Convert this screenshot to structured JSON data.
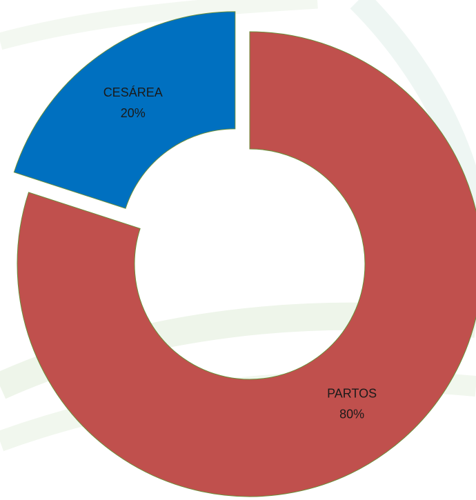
{
  "chart_data": {
    "type": "donut",
    "categories": [
      "PARTOS",
      "CESÁREA"
    ],
    "values": [
      80,
      20
    ],
    "value_labels": [
      "80%",
      "20%"
    ],
    "colors": [
      "#c0504d",
      "#0070c0"
    ],
    "exploded": [
      false,
      true
    ]
  }
}
